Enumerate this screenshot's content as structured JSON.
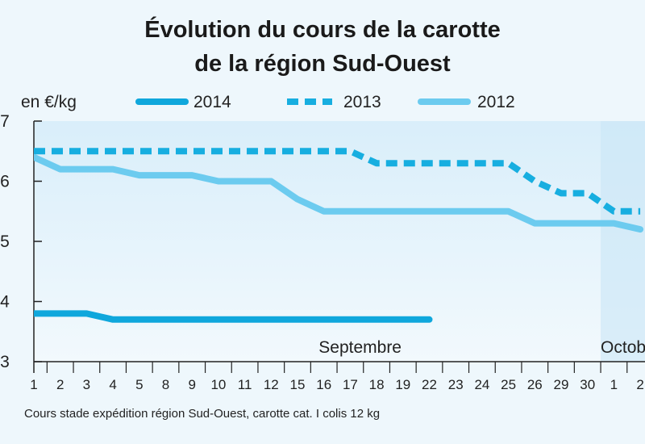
{
  "chart_data": {
    "type": "line",
    "title": "Évolution du cours de la carotte",
    "subtitle": "de la région Sud-Ouest",
    "ylabel": "en €/kg",
    "yticks": [
      "3",
      "4",
      "5",
      "6",
      "7"
    ],
    "ylim": [
      3,
      7
    ],
    "grid": false,
    "legend_placement": "top",
    "x": [
      "1",
      "2",
      "3",
      "4",
      "5",
      "8",
      "9",
      "10",
      "11",
      "12",
      "15",
      "16",
      "17",
      "18",
      "19",
      "22",
      "23",
      "24",
      "25",
      "26",
      "29",
      "30",
      "1",
      "2"
    ],
    "months": [
      {
        "label": "Septembre",
        "start_index": 0,
        "end_index": 21
      },
      {
        "label": "Octobre",
        "start_index": 22,
        "end_index": 23
      }
    ],
    "series": [
      {
        "name": "2014",
        "style": "solid-thick",
        "color": "#0fa7dc",
        "values": [
          3.8,
          3.8,
          3.8,
          3.7,
          3.7,
          3.7,
          3.7,
          3.7,
          3.7,
          3.7,
          3.7,
          3.7,
          3.7,
          3.7,
          3.7,
          3.7,
          null,
          null,
          null,
          null,
          null,
          null,
          null,
          null
        ]
      },
      {
        "name": "2013",
        "style": "dashed",
        "color": "#17aee0",
        "values": [
          6.5,
          6.5,
          6.5,
          6.5,
          6.5,
          6.5,
          6.5,
          6.5,
          6.5,
          6.5,
          6.5,
          6.5,
          6.5,
          6.3,
          6.3,
          6.3,
          6.3,
          6.3,
          6.3,
          6.0,
          5.8,
          5.8,
          5.5,
          5.5
        ]
      },
      {
        "name": "2012",
        "style": "solid",
        "color": "#6ccbef",
        "values": [
          6.4,
          6.2,
          6.2,
          6.2,
          6.1,
          6.1,
          6.1,
          6.0,
          6.0,
          6.0,
          5.7,
          5.5,
          5.5,
          5.5,
          5.5,
          5.5,
          5.5,
          5.5,
          5.5,
          5.3,
          5.3,
          5.3,
          5.3,
          5.2
        ]
      }
    ],
    "source": "Cours stade expédition région Sud-Ouest, carotte cat. I colis 12 kg"
  }
}
